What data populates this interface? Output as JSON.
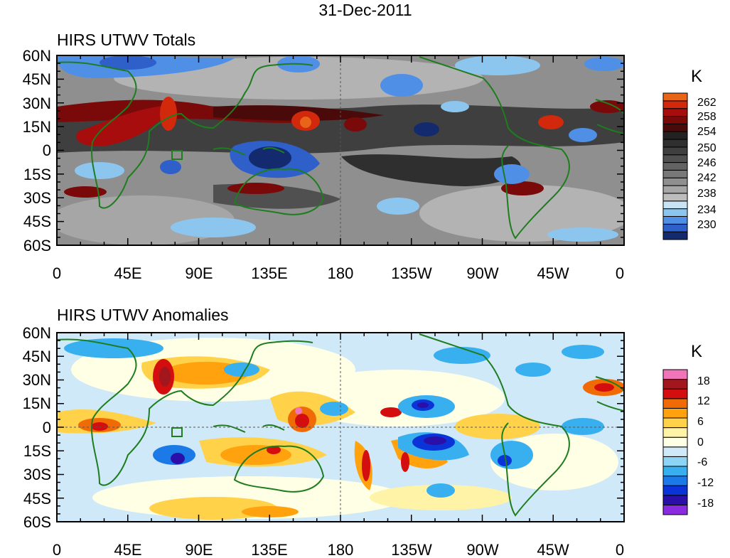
{
  "title": "31-Dec-2011",
  "lat_labels": [
    "60N",
    "45N",
    "30N",
    "15N",
    "0",
    "15S",
    "30S",
    "45S",
    "60S"
  ],
  "lon_labels": [
    "0",
    "45E",
    "90E",
    "135E",
    "180",
    "135W",
    "90W",
    "45W",
    "0"
  ],
  "panels": [
    {
      "id": "totals",
      "title": "HIRS UTWV Totals",
      "units": "K",
      "colorbar": {
        "colors": [
          "#142a6e",
          "#2f5fc8",
          "#4f90e6",
          "#8cc6ee",
          "#c8e4f4",
          "#bdbdbd",
          "#a6a6a6",
          "#8f8f8f",
          "#787878",
          "#636363",
          "#505050",
          "#3f3f3f",
          "#2f2f2f",
          "#222222",
          "#4a0a0a",
          "#7a0a0a",
          "#a80d0d",
          "#d2280c",
          "#e86418"
        ],
        "labels": [
          "262",
          "258",
          "254",
          "250",
          "246",
          "242",
          "238",
          "234",
          "230"
        ]
      }
    },
    {
      "id": "anomalies",
      "title": "HIRS UTWV Anomalies",
      "units": "K",
      "colorbar": {
        "colors": [
          "#8a2be2",
          "#2a10a8",
          "#0a34d8",
          "#1b7ae8",
          "#38b0f0",
          "#8ed4f5",
          "#cfe9f8",
          "#ffffe6",
          "#fff3a8",
          "#ffd24a",
          "#ffa20e",
          "#f06a06",
          "#d40e0e",
          "#a2161e",
          "#f075b8"
        ],
        "labels": [
          "18",
          "12",
          "6",
          "0",
          "-6",
          "-12",
          "-18"
        ]
      }
    }
  ]
}
